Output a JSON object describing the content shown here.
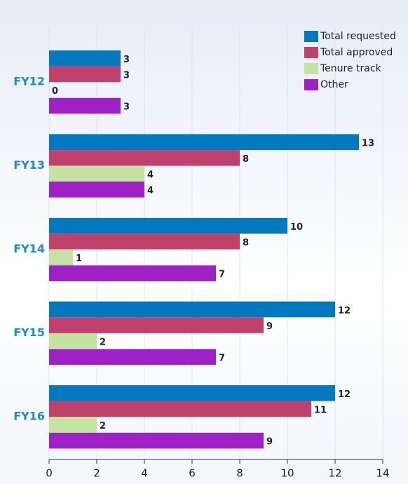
{
  "chart_data": {
    "type": "bar",
    "orientation": "horizontal",
    "categories": [
      "FY12",
      "FY13",
      "FY14",
      "FY15",
      "FY16"
    ],
    "series": [
      {
        "name": "Total requested",
        "color": "#0079c1",
        "values": [
          3,
          13,
          10,
          12,
          12
        ]
      },
      {
        "name": "Total approved",
        "color": "#c0426c",
        "values": [
          3,
          8,
          8,
          9,
          11
        ]
      },
      {
        "name": "Tenure track",
        "color": "#c4e3a0",
        "values": [
          0,
          4,
          1,
          2,
          2
        ]
      },
      {
        "name": "Other",
        "color": "#a020c8",
        "values": [
          3,
          4,
          7,
          7,
          9
        ]
      }
    ],
    "xlim": [
      0,
      14
    ],
    "xticks": [
      0,
      2,
      4,
      6,
      8,
      10,
      12,
      14
    ],
    "grid": true,
    "legend": "top-right"
  }
}
